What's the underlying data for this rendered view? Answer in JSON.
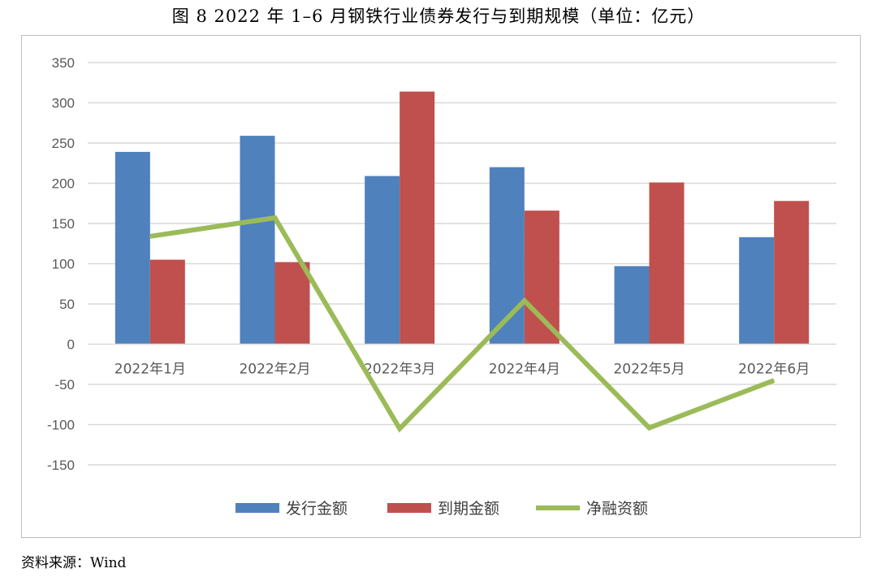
{
  "figure_title": "图 8   2022 年 1–6 月钢铁行业债券发行与到期规模（单位：亿元）",
  "source_note": "资料来源：Wind",
  "chart_data": {
    "type": "bar",
    "categories": [
      "2022年1月",
      "2022年2月",
      "2022年3月",
      "2022年4月",
      "2022年5月",
      "2022年6月"
    ],
    "series": [
      {
        "name": "发行金额",
        "type": "bar",
        "color": "#4f81bd",
        "values": [
          239,
          259,
          209,
          220,
          97,
          133
        ]
      },
      {
        "name": "到期金额",
        "type": "bar",
        "color": "#c0504d",
        "values": [
          105,
          102,
          314,
          166,
          201,
          178
        ]
      },
      {
        "name": "净融资额",
        "type": "line",
        "color": "#9bbb59",
        "values": [
          134,
          157,
          -105,
          54,
          -104,
          -45
        ]
      }
    ],
    "ylim": [
      -150,
      350
    ],
    "yticks": [
      350,
      300,
      250,
      200,
      150,
      100,
      50,
      0,
      -50,
      -100,
      -150
    ],
    "grid": true,
    "legend_position": "bottom"
  }
}
